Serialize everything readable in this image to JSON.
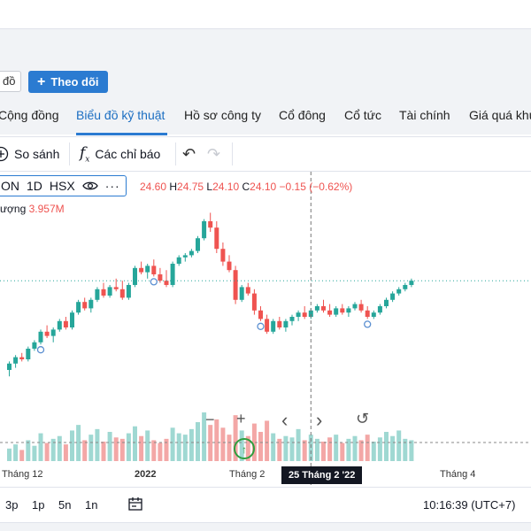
{
  "header": {
    "map_button_label": "đồ",
    "follow_button_label": "Theo dõi"
  },
  "tabs": [
    {
      "label": "Cộng đồng"
    },
    {
      "label": "Biểu đồ kỹ thuật",
      "active": true
    },
    {
      "label": "Hồ sơ công ty"
    },
    {
      "label": "Cổ đông"
    },
    {
      "label": "Cổ tức"
    },
    {
      "label": "Tài chính"
    },
    {
      "label": "Giá quá khứ"
    }
  ],
  "toolbar": {
    "compare_label": "So sánh",
    "indicators_label": "Các chỉ báo",
    "icons": [
      "plus-circle-icon",
      "function-icon",
      "undo-icon",
      "redo-icon"
    ]
  },
  "legend": {
    "symbol": "ON",
    "interval": "1D",
    "exchange": "HSX",
    "open_label": "",
    "open": "24.60",
    "high_label": "H",
    "high": "24.75",
    "low_label": "L",
    "low": "24.10",
    "close_label": "C",
    "close": "24.10",
    "change": "−0.15 (−0.62%)",
    "volume_label": "ượng",
    "volume": "3.957M"
  },
  "nav_controls": {
    "zoom_out": "−",
    "zoom_in": "+",
    "scroll_left": "‹",
    "scroll_right": "›",
    "reset": "↺"
  },
  "xaxis": {
    "labels": [
      "Tháng 12",
      "2022",
      "Tháng 2",
      "Tháng 4"
    ],
    "crosshair_date": "25 Tháng 2 '22"
  },
  "bottombar": {
    "ranges": [
      "3p",
      "1p",
      "5n",
      "1n"
    ],
    "clock": "10:16:39 (UTC+7)"
  },
  "colors": {
    "up": "#26a69a",
    "down": "#ef5350",
    "accent": "#2b7bd1",
    "volume_up": "#9fd8d2",
    "volume_down": "#f3a7a6"
  },
  "chart_data": {
    "type": "candlestick",
    "ylabel": "",
    "xlabel": "",
    "candles": [
      {
        "o": 18.5,
        "h": 18.9,
        "l": 18.2,
        "c": 18.8
      },
      {
        "o": 18.8,
        "h": 19.2,
        "l": 18.6,
        "c": 19.1
      },
      {
        "o": 19.1,
        "h": 19.3,
        "l": 18.9,
        "c": 19.0
      },
      {
        "o": 19.0,
        "h": 19.6,
        "l": 18.9,
        "c": 19.5
      },
      {
        "o": 19.5,
        "h": 19.9,
        "l": 19.4,
        "c": 19.8
      },
      {
        "o": 19.8,
        "h": 20.4,
        "l": 19.7,
        "c": 20.3
      },
      {
        "o": 20.3,
        "h": 20.6,
        "l": 20.0,
        "c": 20.1
      },
      {
        "o": 20.1,
        "h": 20.5,
        "l": 19.8,
        "c": 20.4
      },
      {
        "o": 20.4,
        "h": 20.9,
        "l": 20.3,
        "c": 20.8
      },
      {
        "o": 20.8,
        "h": 21.0,
        "l": 20.4,
        "c": 20.5
      },
      {
        "o": 20.5,
        "h": 21.3,
        "l": 20.4,
        "c": 21.2
      },
      {
        "o": 21.2,
        "h": 21.8,
        "l": 21.1,
        "c": 21.7
      },
      {
        "o": 21.7,
        "h": 21.9,
        "l": 21.3,
        "c": 21.4
      },
      {
        "o": 21.4,
        "h": 21.9,
        "l": 21.2,
        "c": 21.8
      },
      {
        "o": 21.8,
        "h": 22.4,
        "l": 21.7,
        "c": 22.3
      },
      {
        "o": 22.3,
        "h": 22.6,
        "l": 21.9,
        "c": 22.0
      },
      {
        "o": 22.0,
        "h": 22.5,
        "l": 21.9,
        "c": 22.4
      },
      {
        "o": 22.4,
        "h": 22.8,
        "l": 22.2,
        "c": 22.3
      },
      {
        "o": 22.3,
        "h": 22.7,
        "l": 21.8,
        "c": 21.9
      },
      {
        "o": 21.9,
        "h": 22.6,
        "l": 21.8,
        "c": 22.5
      },
      {
        "o": 22.5,
        "h": 23.4,
        "l": 22.4,
        "c": 23.3
      },
      {
        "o": 23.3,
        "h": 23.6,
        "l": 23.0,
        "c": 23.1
      },
      {
        "o": 23.1,
        "h": 23.5,
        "l": 22.8,
        "c": 23.4
      },
      {
        "o": 23.4,
        "h": 23.7,
        "l": 22.9,
        "c": 23.0
      },
      {
        "o": 23.0,
        "h": 23.3,
        "l": 22.6,
        "c": 22.7
      },
      {
        "o": 22.7,
        "h": 23.2,
        "l": 22.4,
        "c": 22.5
      },
      {
        "o": 22.5,
        "h": 23.6,
        "l": 22.4,
        "c": 23.5
      },
      {
        "o": 23.5,
        "h": 23.9,
        "l": 23.4,
        "c": 23.8
      },
      {
        "o": 23.8,
        "h": 24.0,
        "l": 23.6,
        "c": 23.9
      },
      {
        "o": 23.9,
        "h": 24.2,
        "l": 23.8,
        "c": 24.1
      },
      {
        "o": 24.1,
        "h": 24.8,
        "l": 24.0,
        "c": 24.7
      },
      {
        "o": 24.7,
        "h": 25.6,
        "l": 24.6,
        "c": 25.5
      },
      {
        "o": 25.5,
        "h": 25.9,
        "l": 25.0,
        "c": 25.2
      },
      {
        "o": 25.2,
        "h": 25.5,
        "l": 24.0,
        "c": 24.2
      },
      {
        "o": 24.2,
        "h": 24.5,
        "l": 23.4,
        "c": 23.6
      },
      {
        "o": 23.6,
        "h": 23.9,
        "l": 23.1,
        "c": 23.2
      },
      {
        "o": 23.2,
        "h": 23.4,
        "l": 21.6,
        "c": 21.8
      },
      {
        "o": 21.8,
        "h": 22.5,
        "l": 21.7,
        "c": 22.4
      },
      {
        "o": 22.4,
        "h": 22.6,
        "l": 22.0,
        "c": 22.1
      },
      {
        "o": 22.1,
        "h": 22.3,
        "l": 21.1,
        "c": 21.3
      },
      {
        "o": 21.3,
        "h": 21.5,
        "l": 20.8,
        "c": 20.9
      },
      {
        "o": 20.9,
        "h": 21.1,
        "l": 20.2,
        "c": 20.3
      },
      {
        "o": 20.3,
        "h": 20.9,
        "l": 20.2,
        "c": 20.8
      },
      {
        "o": 20.8,
        "h": 21.0,
        "l": 20.4,
        "c": 20.5
      },
      {
        "o": 20.5,
        "h": 20.9,
        "l": 20.3,
        "c": 20.8
      },
      {
        "o": 20.8,
        "h": 21.1,
        "l": 20.6,
        "c": 21.0
      },
      {
        "o": 21.0,
        "h": 21.3,
        "l": 20.8,
        "c": 21.2
      },
      {
        "o": 21.2,
        "h": 21.5,
        "l": 20.9,
        "c": 21.0
      },
      {
        "o": 21.0,
        "h": 21.4,
        "l": 20.9,
        "c": 21.3
      },
      {
        "o": 21.3,
        "h": 21.6,
        "l": 21.2,
        "c": 21.5
      },
      {
        "o": 21.5,
        "h": 21.8,
        "l": 21.2,
        "c": 21.3
      },
      {
        "o": 21.3,
        "h": 21.6,
        "l": 21.0,
        "c": 21.1
      },
      {
        "o": 21.1,
        "h": 21.5,
        "l": 21.0,
        "c": 21.4
      },
      {
        "o": 21.4,
        "h": 21.6,
        "l": 21.1,
        "c": 21.2
      },
      {
        "o": 21.2,
        "h": 21.5,
        "l": 21.0,
        "c": 21.4
      },
      {
        "o": 21.4,
        "h": 21.7,
        "l": 21.3,
        "c": 21.6
      },
      {
        "o": 21.6,
        "h": 21.8,
        "l": 21.2,
        "c": 21.3
      },
      {
        "o": 21.3,
        "h": 21.5,
        "l": 20.9,
        "c": 21.0
      },
      {
        "o": 21.0,
        "h": 21.3,
        "l": 20.9,
        "c": 21.2
      },
      {
        "o": 21.2,
        "h": 21.6,
        "l": 21.1,
        "c": 21.5
      },
      {
        "o": 21.5,
        "h": 21.9,
        "l": 21.4,
        "c": 21.8
      },
      {
        "o": 21.8,
        "h": 22.2,
        "l": 21.7,
        "c": 22.1
      },
      {
        "o": 22.1,
        "h": 22.4,
        "l": 22.0,
        "c": 22.3
      },
      {
        "o": 22.3,
        "h": 22.6,
        "l": 22.2,
        "c": 22.5
      },
      {
        "o": 22.5,
        "h": 22.8,
        "l": 22.4,
        "c": 22.7
      }
    ],
    "volumes": [
      0.9,
      1.2,
      0.8,
      1.5,
      1.1,
      2.0,
      1.3,
      1.6,
      1.8,
      1.2,
      2.2,
      2.6,
      1.5,
      1.9,
      2.3,
      1.4,
      2.1,
      1.7,
      1.6,
      2.0,
      2.5,
      1.8,
      2.2,
      1.5,
      1.3,
      1.6,
      2.4,
      2.0,
      1.9,
      2.3,
      2.8,
      3.5,
      2.6,
      3.0,
      2.4,
      1.9,
      3.3,
      2.2,
      1.8,
      2.7,
      2.1,
      2.9,
      2.0,
      1.6,
      1.8,
      1.7,
      2.3,
      1.5,
      1.9,
      1.6,
      1.4,
      1.7,
      1.9,
      1.3,
      1.6,
      1.8,
      1.5,
      1.9,
      1.4,
      1.7,
      2.1,
      1.8,
      2.2,
      1.6,
      1.5
    ],
    "current_price": 22.7,
    "ylim": [
      17.5,
      26.5
    ],
    "crosshair_index": 48,
    "x_tick_labels": [
      "Tháng 12",
      "2022",
      "Tháng 2",
      "Tháng 4"
    ]
  }
}
